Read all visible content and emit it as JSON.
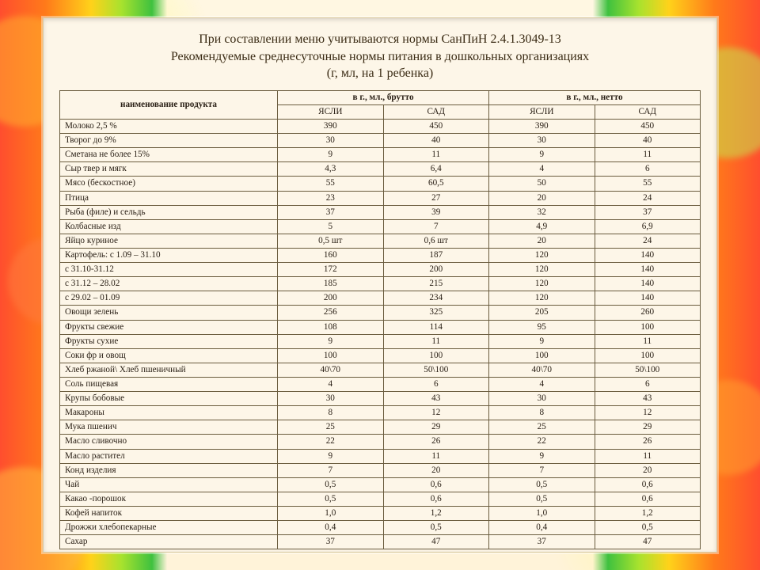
{
  "title_lines": [
    "При составлении меню учитываются нормы СанПиН 2.4.1.3049-13",
    "Рекомендуемые среднесуточные нормы питания в дошкольных организациях",
    "(г, мл, на 1 ребенка)"
  ],
  "headers": {
    "product": "наименование продукта",
    "brutto": "в г., мл., брутто",
    "netto": "в г., мл., нетто",
    "yasli": "ЯСЛИ",
    "sad": "САД"
  },
  "columns": [
    "name",
    "brutto_yasli",
    "brutto_sad",
    "netto_yasli",
    "netto_sad"
  ],
  "rows": [
    [
      "Молоко 2,5 %",
      "390",
      "450",
      "390",
      "450"
    ],
    [
      "Творог до 9%",
      "30",
      "40",
      "30",
      "40"
    ],
    [
      "Сметана не более 15%",
      "9",
      "11",
      "9",
      "11"
    ],
    [
      "Сыр твер и мягк",
      "4,3",
      "6,4",
      "4",
      "6"
    ],
    [
      "Мясо (бескостное)",
      "55",
      "60,5",
      "50",
      "55"
    ],
    [
      "Птица",
      "23",
      "27",
      "20",
      "24"
    ],
    [
      "Рыба (филе) и сельдь",
      "37",
      "39",
      "32",
      "37"
    ],
    [
      "Колбасные изд",
      "5",
      "7",
      "4,9",
      "6,9"
    ],
    [
      "Яйцо куриное",
      "0,5 шт",
      "0,6 шт",
      "20",
      "24"
    ],
    [
      "Картофель: с 1.09 – 31.10",
      "160",
      "187",
      "120",
      "140"
    ],
    [
      "с  31.10-31.12",
      "172",
      "200",
      "120",
      "140"
    ],
    [
      "с 31.12 – 28.02",
      "185",
      "215",
      "120",
      "140"
    ],
    [
      "с 29.02 – 01.09",
      "200",
      "234",
      "120",
      "140"
    ],
    [
      "Овощи зелень",
      "256",
      "325",
      "205",
      "260"
    ],
    [
      "Фрукты свежие",
      "108",
      "114",
      "95",
      "100"
    ],
    [
      "Фрукты сухие",
      "9",
      "11",
      "9",
      "11"
    ],
    [
      "Соки фр и овощ",
      "100",
      "100",
      "100",
      "100"
    ],
    [
      "Хлеб ржаной\\ Хлеб пшеничный",
      "40\\70",
      "50\\100",
      "40\\70",
      "50\\100"
    ],
    [
      "Соль пищевая",
      "4",
      "6",
      "4",
      "6"
    ],
    [
      "Крупы бобовые",
      "30",
      "43",
      "30",
      "43"
    ],
    [
      "Макароны",
      "8",
      "12",
      "8",
      "12"
    ],
    [
      "Мука пшенич",
      "25",
      "29",
      "25",
      "29"
    ],
    [
      "Масло сливочно",
      "22",
      "26",
      "22",
      "26"
    ],
    [
      "Масло растител",
      "9",
      "11",
      "9",
      "11"
    ],
    [
      "Конд изделия",
      "7",
      "20",
      "7",
      "20"
    ],
    [
      "Чай",
      "0,5",
      "0,6",
      "0,5",
      "0,6"
    ],
    [
      "Какао -порошок",
      "0,5",
      "0,6",
      "0,5",
      "0,6"
    ],
    [
      "Кофей напиток",
      "1,0",
      "1,2",
      "1,0",
      "1,2"
    ],
    [
      "Дрожжи хлебопекарные",
      "0,4",
      "0,5",
      "0,4",
      "0,5"
    ],
    [
      "Сахар",
      "37",
      "47",
      "37",
      "47"
    ]
  ],
  "style": {
    "page_bg": "#fdf6e8",
    "border_color": "#6a5c3e",
    "title_fontsize": 16,
    "table_fontsize": 11.2,
    "text_color": "#2a2016",
    "col_widths_pct": [
      34,
      16.5,
      16.5,
      16.5,
      16.5
    ]
  }
}
